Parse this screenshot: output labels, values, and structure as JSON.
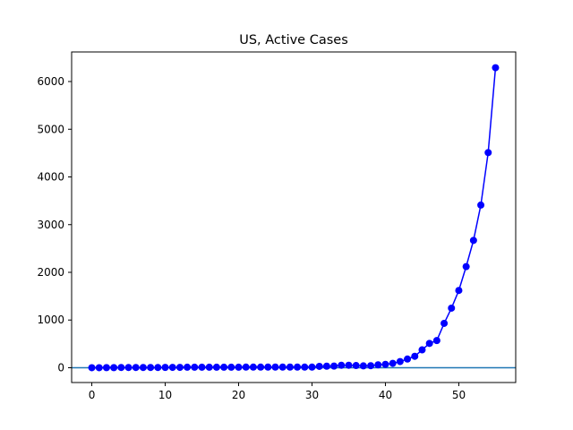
{
  "chart_data": {
    "type": "line",
    "title": "US, Active Cases",
    "xlabel": "",
    "ylabel": "",
    "xlim": [
      -2.75,
      57.75
    ],
    "ylim": [
      -310,
      6620
    ],
    "xticks": [
      0,
      10,
      20,
      30,
      40,
      50
    ],
    "yticks": [
      0,
      1000,
      2000,
      3000,
      4000,
      5000,
      6000
    ],
    "grid": false,
    "legend": "none",
    "series": [
      {
        "color": "#0000ff",
        "marker": "circle",
        "x": [
          0,
          1,
          2,
          3,
          4,
          5,
          6,
          7,
          8,
          9,
          10,
          11,
          12,
          13,
          14,
          15,
          16,
          17,
          18,
          19,
          20,
          21,
          22,
          23,
          24,
          25,
          26,
          27,
          28,
          29,
          30,
          31,
          32,
          33,
          34,
          35,
          36,
          37,
          38,
          39,
          40,
          41,
          42,
          43,
          44,
          45,
          46,
          47,
          48,
          49,
          50,
          51,
          52,
          53,
          54,
          55
        ],
        "y": [
          1,
          1,
          2,
          2,
          5,
          5,
          5,
          5,
          5,
          5,
          7,
          8,
          8,
          11,
          11,
          11,
          11,
          11,
          11,
          11,
          11,
          13,
          13,
          13,
          14,
          14,
          14,
          14,
          14,
          13,
          13,
          29,
          33,
          35,
          52,
          52,
          46,
          39,
          43,
          61,
          71,
          92,
          130,
          182,
          240,
          375,
          510,
          570,
          930,
          1250,
          1620,
          2120,
          2670,
          3410,
          4510,
          6290
        ]
      }
    ],
    "hline": {
      "y": 0,
      "color": "#1f77b4"
    }
  }
}
